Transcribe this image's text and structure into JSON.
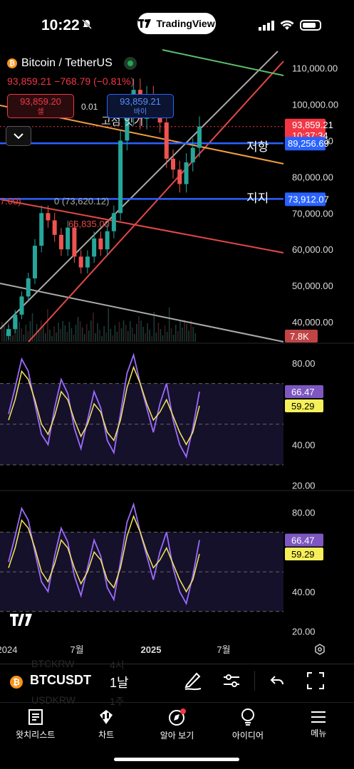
{
  "status": {
    "time": "10:22",
    "app_pill": "TradingView"
  },
  "header": {
    "symbol_name": "Bitcoin / TetherUS",
    "price_line": "93,859.21 −768.79 (−0.81%)",
    "sell_price": "93,859.20",
    "sell_label": "셀",
    "buy_price": "93,859.21",
    "buy_label": "바이",
    "spread": "0.01"
  },
  "chart_data": [
    {
      "type": "line",
      "pane": "price",
      "y_ticks": [
        "110,000.00",
        "100,000.00",
        "90,000.00",
        "80,000.00",
        "70,000.00",
        "60,000.00",
        "50,000.00",
        "40,000.00"
      ],
      "y_tick_values": [
        110000,
        100000,
        90000,
        80000,
        70000,
        60000,
        50000,
        40000
      ],
      "ylim": [
        34500,
        117000
      ],
      "x_ticks": [
        "2024",
        "7월",
        "2025",
        "7월"
      ],
      "last_price_label": "93,859.21",
      "countdown": "10:37:34",
      "resistance": {
        "label": "저항",
        "value": 89256.69,
        "value_text": "89,256.69"
      },
      "support": {
        "label": "지지",
        "value": 73912.07,
        "value_text": "73,912.07"
      },
      "volume_label": "7.8K",
      "annotations": [
        "고점 잇기",
        "7.00)",
        "0 (73,620.12)",
        "66,835.00"
      ],
      "series": [
        {
          "values": [
            38000,
            42000,
            47000,
            52000,
            61000,
            70000,
            68000,
            64000,
            60000,
            66000,
            58000,
            55000,
            58000,
            63000,
            60000,
            65000,
            70000,
            90000,
            97000,
            104000,
            96000,
            102000,
            99000,
            95000,
            85000,
            82000,
            78000,
            84000,
            88000,
            93859
          ]
        }
      ]
    },
    {
      "type": "line",
      "pane": "rsi-1",
      "y_ticks": [
        "80.00",
        "40.00",
        "20.00"
      ],
      "y_tick_values": [
        80,
        40,
        20
      ],
      "ylim": [
        17,
        87
      ],
      "last_values_text": [
        "66.47",
        "59.29"
      ],
      "series": [
        {
          "values": [
            55,
            68,
            82,
            76,
            60,
            45,
            40,
            58,
            72,
            65,
            48,
            38,
            52,
            66,
            58,
            42,
            36,
            55,
            75,
            84,
            70,
            58,
            46,
            60,
            70,
            52,
            40,
            34,
            48,
            66
          ]
        },
        {
          "values": [
            52,
            62,
            76,
            72,
            62,
            50,
            45,
            54,
            66,
            62,
            52,
            44,
            50,
            60,
            56,
            46,
            42,
            52,
            68,
            78,
            70,
            60,
            52,
            56,
            62,
            54,
            46,
            40,
            46,
            59
          ]
        }
      ]
    },
    {
      "type": "line",
      "pane": "rsi-2",
      "y_ticks": [
        "80.00",
        "40.00",
        "20.00"
      ],
      "y_tick_values": [
        80,
        40,
        20
      ],
      "ylim": [
        17,
        87
      ],
      "last_values_text": [
        "66.47",
        "59.29"
      ],
      "series": [
        {
          "values": [
            55,
            68,
            82,
            76,
            60,
            45,
            40,
            58,
            72,
            65,
            48,
            38,
            52,
            66,
            58,
            42,
            36,
            55,
            75,
            84,
            70,
            58,
            46,
            60,
            70,
            52,
            40,
            34,
            48,
            66
          ]
        },
        {
          "values": [
            52,
            62,
            76,
            72,
            62,
            50,
            45,
            54,
            66,
            62,
            52,
            44,
            50,
            60,
            56,
            46,
            42,
            52,
            68,
            78,
            70,
            60,
            52,
            56,
            62,
            54,
            46,
            40,
            46,
            59
          ]
        }
      ]
    }
  ],
  "bottom_bar": {
    "symbol": "BTCUSDT",
    "interval": "1날",
    "ghost_1": "BTCKRW",
    "ghost_1b": "4시",
    "ghost_2": "USDKRW",
    "ghost_2b": "1주"
  },
  "tabs": [
    {
      "label": "왓치리스트",
      "icon": "watchlist-icon"
    },
    {
      "label": "차트",
      "icon": "chart-icon"
    },
    {
      "label": "알아 보기",
      "icon": "explore-icon"
    },
    {
      "label": "아이디어",
      "icon": "ideas-icon"
    },
    {
      "label": "메뉴",
      "icon": "menu-icon"
    }
  ],
  "colors": {
    "up": "#26a69a",
    "down": "#ef5350",
    "blue": "#2962ff",
    "rsi": "#9b6bff",
    "ma": "#f5e85c"
  }
}
